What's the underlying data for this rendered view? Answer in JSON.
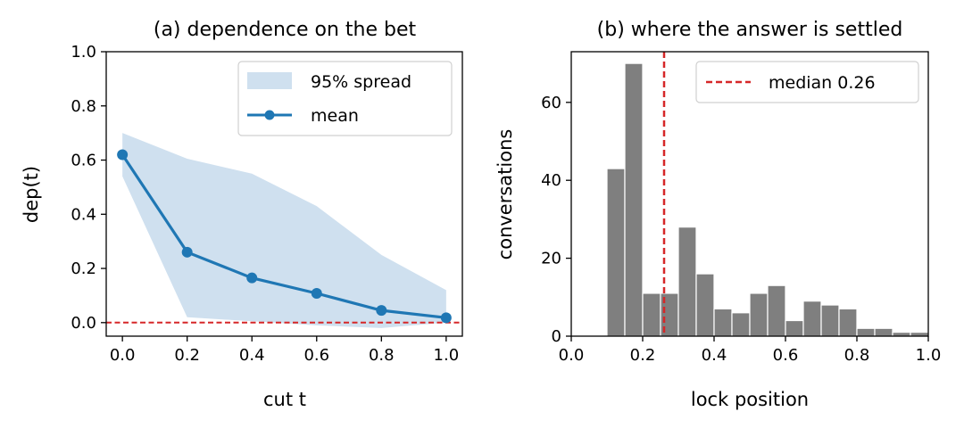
{
  "chart_data": [
    {
      "type": "line",
      "title": "(a) dependence on the bet",
      "xlabel": "cut t",
      "ylabel": "dep(t)",
      "xlim": [
        -0.05,
        1.05
      ],
      "ylim": [
        -0.05,
        1.0
      ],
      "xticks": [
        0.0,
        0.2,
        0.4,
        0.6,
        0.8,
        1.0
      ],
      "yticks": [
        0.0,
        0.2,
        0.4,
        0.6,
        0.8,
        1.0
      ],
      "x": [
        0.0,
        0.2,
        0.4,
        0.6,
        0.8,
        1.0
      ],
      "series": [
        {
          "name": "mean",
          "values": [
            0.62,
            0.26,
            0.165,
            0.108,
            0.045,
            0.018
          ],
          "color": "#1f77b4"
        }
      ],
      "band": {
        "name": "95% spread",
        "lower": [
          0.54,
          0.02,
          0.005,
          -0.01,
          -0.02,
          0.0
        ],
        "upper": [
          0.7,
          0.605,
          0.55,
          0.43,
          0.25,
          0.12
        ],
        "color": "#cfe0ef"
      },
      "reference_line": {
        "y": 0.0,
        "color": "#d62728",
        "style": "dashed"
      },
      "legend": "top-right"
    },
    {
      "type": "bar",
      "title": "(b) where the answer is settled",
      "xlabel": "lock position",
      "ylabel": "conversations",
      "xlim": [
        0.0,
        1.0
      ],
      "ylim": [
        0,
        73
      ],
      "xticks": [
        0.0,
        0.2,
        0.4,
        0.6,
        0.8,
        1.0
      ],
      "yticks": [
        0,
        20,
        40,
        60
      ],
      "bin_width": 0.05,
      "bins": [
        {
          "x": 0.1,
          "count": 43
        },
        {
          "x": 0.15,
          "count": 70
        },
        {
          "x": 0.2,
          "count": 11
        },
        {
          "x": 0.25,
          "count": 11
        },
        {
          "x": 0.3,
          "count": 28
        },
        {
          "x": 0.35,
          "count": 16
        },
        {
          "x": 0.4,
          "count": 7
        },
        {
          "x": 0.45,
          "count": 6
        },
        {
          "x": 0.5,
          "count": 11
        },
        {
          "x": 0.55,
          "count": 13
        },
        {
          "x": 0.6,
          "count": 4
        },
        {
          "x": 0.65,
          "count": 9
        },
        {
          "x": 0.7,
          "count": 8
        },
        {
          "x": 0.75,
          "count": 7
        },
        {
          "x": 0.8,
          "count": 2
        },
        {
          "x": 0.85,
          "count": 2
        },
        {
          "x": 0.9,
          "count": 1
        },
        {
          "x": 0.95,
          "count": 1
        }
      ],
      "bar_color": "#7f7f7f",
      "median_line": {
        "x": 0.26,
        "label": "median 0.26",
        "color": "#d62728",
        "style": "dashed"
      },
      "legend": "top-right"
    }
  ]
}
